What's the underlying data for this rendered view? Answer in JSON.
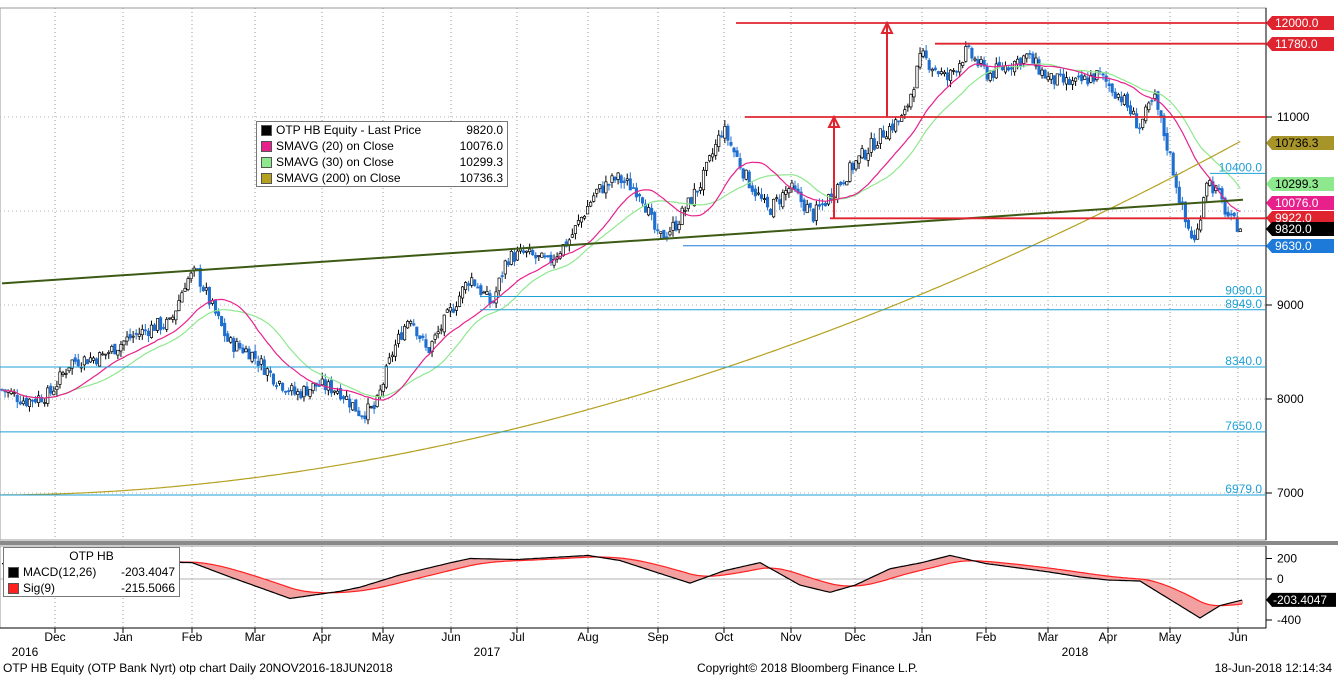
{
  "chart_data": [
    {
      "type": "candlestick",
      "legend": {
        "title": "OTP HB Equity - Last Price",
        "title_value": "9820.0",
        "items": [
          {
            "name": "SMAVG (20) on Close",
            "value": "10076.0",
            "color": "#e8208c"
          },
          {
            "name": "SMAVG (30) on Close",
            "value": "10299.3",
            "color": "#8ee88e"
          },
          {
            "name": "SMAVG (200) on Close",
            "value": "10736.3",
            "color": "#b5a020"
          }
        ]
      },
      "y_axis": {
        "ticks": [
          7000,
          8000,
          9000,
          11000
        ],
        "ylim": [
          6500,
          12200
        ]
      },
      "x_axis": {
        "month_labels": [
          "Dec",
          "Jan",
          "Feb",
          "Mar",
          "Apr",
          "May",
          "Jun",
          "Jul",
          "Aug",
          "Sep",
          "Oct",
          "Nov",
          "Dec",
          "Jan",
          "Feb",
          "Mar",
          "Apr",
          "May",
          "Jun"
        ],
        "year_labels": [
          "2016",
          "2017",
          "2018"
        ],
        "range": [
          "20NOV2016",
          "18JUN2018"
        ]
      },
      "close_series": [
        {
          "date": "2016-11-20",
          "close": 8100
        },
        {
          "date": "2016-12-01",
          "close": 7980
        },
        {
          "date": "2016-12-12",
          "close": 8050
        },
        {
          "date": "2016-12-22",
          "close": 8400
        },
        {
          "date": "2017-01-05",
          "close": 8450
        },
        {
          "date": "2017-01-18",
          "close": 8650
        },
        {
          "date": "2017-01-30",
          "close": 8780
        },
        {
          "date": "2017-02-06",
          "close": 8800
        },
        {
          "date": "2017-02-13",
          "close": 9250
        },
        {
          "date": "2017-02-18",
          "close": 9350
        },
        {
          "date": "2017-02-25",
          "close": 9000
        },
        {
          "date": "2017-03-05",
          "close": 8600
        },
        {
          "date": "2017-03-15",
          "close": 8500
        },
        {
          "date": "2017-03-25",
          "close": 8250
        },
        {
          "date": "2017-04-05",
          "close": 8050
        },
        {
          "date": "2017-04-15",
          "close": 8150
        },
        {
          "date": "2017-04-25",
          "close": 8100
        },
        {
          "date": "2017-05-05",
          "close": 7850
        },
        {
          "date": "2017-05-12",
          "close": 7900
        },
        {
          "date": "2017-05-20",
          "close": 8500
        },
        {
          "date": "2017-05-28",
          "close": 8900
        },
        {
          "date": "2017-06-05",
          "close": 8500
        },
        {
          "date": "2017-06-15",
          "close": 8900
        },
        {
          "date": "2017-06-25",
          "close": 9300
        },
        {
          "date": "2017-07-05",
          "close": 9000
        },
        {
          "date": "2017-07-12",
          "close": 9500
        },
        {
          "date": "2017-07-20",
          "close": 9550
        },
        {
          "date": "2017-07-31",
          "close": 9450
        },
        {
          "date": "2017-08-10",
          "close": 9700
        },
        {
          "date": "2017-08-22",
          "close": 10200
        },
        {
          "date": "2017-09-01",
          "close": 10350
        },
        {
          "date": "2017-09-12",
          "close": 10200
        },
        {
          "date": "2017-09-20",
          "close": 9700
        },
        {
          "date": "2017-09-28",
          "close": 9850
        },
        {
          "date": "2017-10-10",
          "close": 10300
        },
        {
          "date": "2017-10-20",
          "close": 10880
        },
        {
          "date": "2017-10-31",
          "close": 10350
        },
        {
          "date": "2017-11-10",
          "close": 10000
        },
        {
          "date": "2017-11-20",
          "close": 10250
        },
        {
          "date": "2017-12-01",
          "close": 9950
        },
        {
          "date": "2017-12-10",
          "close": 10200
        },
        {
          "date": "2017-12-20",
          "close": 10500
        },
        {
          "date": "2018-01-03",
          "close": 10850
        },
        {
          "date": "2018-01-12",
          "close": 11000
        },
        {
          "date": "2018-01-20",
          "close": 11650
        },
        {
          "date": "2018-02-01",
          "close": 11400
        },
        {
          "date": "2018-02-10",
          "close": 11700
        },
        {
          "date": "2018-02-20",
          "close": 11450
        },
        {
          "date": "2018-03-01",
          "close": 11550
        },
        {
          "date": "2018-03-10",
          "close": 11650
        },
        {
          "date": "2018-03-20",
          "close": 11400
        },
        {
          "date": "2018-04-01",
          "close": 11350
        },
        {
          "date": "2018-04-12",
          "close": 11450
        },
        {
          "date": "2018-04-23",
          "close": 11200
        },
        {
          "date": "2018-05-01",
          "close": 10900
        },
        {
          "date": "2018-05-08",
          "close": 11200
        },
        {
          "date": "2018-05-15",
          "close": 10600
        },
        {
          "date": "2018-05-22",
          "close": 9900
        },
        {
          "date": "2018-05-27",
          "close": 9650
        },
        {
          "date": "2018-06-01",
          "close": 10350
        },
        {
          "date": "2018-06-06",
          "close": 10200
        },
        {
          "date": "2018-06-12",
          "close": 9900
        },
        {
          "date": "2018-06-18",
          "close": 9820
        }
      ],
      "levels": [
        {
          "value": 12000.0,
          "label": "12000.0",
          "style": "resistance",
          "color": "#e0242f"
        },
        {
          "value": 11780.0,
          "label": "11780.0",
          "style": "resistance",
          "color": "#e0242f"
        },
        {
          "value": 11000.0,
          "label": "11000",
          "style": "resistance",
          "color": "#e0242f"
        },
        {
          "value": 10400.0,
          "label": "10400.0",
          "style": "fib",
          "color": "#1ea0d8"
        },
        {
          "value": 9922.0,
          "label": "9922.0",
          "style": "resistance",
          "color": "#e0242f"
        },
        {
          "value": 9630.0,
          "label": "9630.0",
          "style": "support",
          "color": "#1e7ad8"
        },
        {
          "value": 9090.0,
          "label": "9090.0",
          "style": "fib",
          "color": "#1ea0d8"
        },
        {
          "value": 8949.0,
          "label": "8949.0",
          "style": "fib",
          "color": "#1ea0d8"
        },
        {
          "value": 8340.0,
          "label": "8340.0",
          "style": "fib",
          "color": "#1ea0d8"
        },
        {
          "value": 7650.0,
          "label": "7650.0",
          "style": "fib",
          "color": "#1ea0d8"
        },
        {
          "value": 6979.0,
          "label": "6979.0",
          "style": "fib",
          "color": "#1ea0d8"
        }
      ],
      "value_tags": [
        {
          "label": "12000.0",
          "bg": "#e0242f",
          "fg": "#ffffff",
          "value": 12000
        },
        {
          "label": "11780.0",
          "bg": "#e0242f",
          "fg": "#ffffff",
          "value": 11780
        },
        {
          "label": "10736.3",
          "bg": "#a8952a",
          "fg": "#000000",
          "value": 10736.3
        },
        {
          "label": "10299.3",
          "bg": "#8ee88e",
          "fg": "#000000",
          "value": 10299.3
        },
        {
          "label": "10076.0",
          "bg": "#e8208c",
          "fg": "#ffffff",
          "value": 10076
        },
        {
          "label": "9922.0",
          "bg": "#e0242f",
          "fg": "#ffffff",
          "value": 9922
        },
        {
          "label": "9820.0",
          "bg": "#000000",
          "fg": "#ffffff",
          "value": 9820
        },
        {
          "label": "9630.0",
          "bg": "#1e7ad8",
          "fg": "#ffffff",
          "value": 9630
        }
      ],
      "trendline": {
        "start": {
          "date": "2016-11-20",
          "value": 9230
        },
        "end": {
          "date": "2018-06-18",
          "value": 10120
        },
        "color": "#3c5a14"
      }
    },
    {
      "type": "line",
      "legend": {
        "title": "OTP HB",
        "items": [
          {
            "name": "MACD(12,26)",
            "value": "-203.4047",
            "color": "#000000"
          },
          {
            "name": "Sig(9)",
            "value": "-215.5066",
            "color": "#ff2020"
          }
        ]
      },
      "y_axis": {
        "ticks": [
          200,
          0,
          -200,
          -400
        ],
        "tick_labels": [
          "200",
          "0",
          "-200",
          "-400"
        ],
        "ylim": [
          -450,
          280
        ]
      },
      "last_tag": {
        "label": "-203.4047",
        "bg": "#000000",
        "fg": "#ffffff",
        "value": -203.4047
      }
    }
  ],
  "footer": {
    "left": "OTP HB Equity (OTP Bank Nyrt) otp chart  Daily 20NOV2016-18JUN2018",
    "center": "Copyright© 2018 Bloomberg Finance L.P.",
    "right": "18-Jun-2018 12:14:34"
  }
}
